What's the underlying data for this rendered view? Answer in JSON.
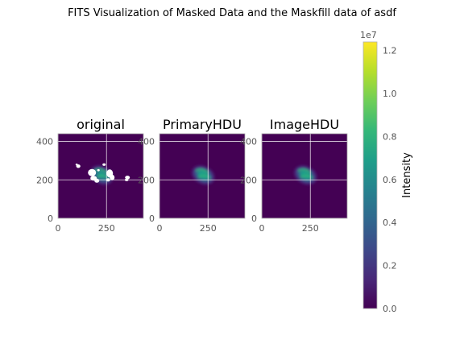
{
  "chart_data": [
    {
      "type": "heatmap",
      "title": "original",
      "xlim": [
        0,
        440
      ],
      "ylim": [
        0,
        440
      ],
      "xticks": [
        {
          "v": 0,
          "label": "0"
        },
        {
          "v": 250,
          "label": "250"
        }
      ],
      "yticks": [
        {
          "v": 0,
          "label": "0"
        },
        {
          "v": 200,
          "label": "200"
        },
        {
          "v": 400,
          "label": "400"
        }
      ],
      "grid": true,
      "masked": true,
      "source_center": [
        225,
        225
      ],
      "peak_intensity": 8000000,
      "background_intensity": 0
    },
    {
      "type": "heatmap",
      "title": "PrimaryHDU",
      "xlim": [
        0,
        440
      ],
      "ylim": [
        0,
        440
      ],
      "xticks": [
        {
          "v": 0,
          "label": "0"
        },
        {
          "v": 250,
          "label": "250"
        }
      ],
      "yticks": [
        {
          "v": 0,
          "label": "0"
        },
        {
          "v": 200,
          "label": "200"
        },
        {
          "v": 400,
          "label": "400"
        }
      ],
      "grid": true,
      "masked": false,
      "source_center": [
        225,
        225
      ],
      "peak_intensity": 7500000,
      "background_intensity": 0
    },
    {
      "type": "heatmap",
      "title": "ImageHDU",
      "xlim": [
        0,
        440
      ],
      "ylim": [
        0,
        440
      ],
      "xticks": [
        {
          "v": 0,
          "label": "0"
        },
        {
          "v": 250,
          "label": "250"
        }
      ],
      "yticks": [
        {
          "v": 0,
          "label": "0"
        },
        {
          "v": 200,
          "label": "200"
        },
        {
          "v": 400,
          "label": "400"
        }
      ],
      "grid": true,
      "masked": false,
      "source_center": [
        225,
        225
      ],
      "peak_intensity": 7500000,
      "background_intensity": 0
    }
  ],
  "figure": {
    "title": "FITS Visualization of Masked Data and the Maskfill data of asdf"
  },
  "colorbar": {
    "label": "Intensity",
    "offset_text": "1e7",
    "range": [
      0,
      12400000
    ],
    "ticks": [
      {
        "v": 0,
        "label": "0.0"
      },
      {
        "v": 2000000,
        "label": "0.2"
      },
      {
        "v": 4000000,
        "label": "0.4"
      },
      {
        "v": 6000000,
        "label": "0.6"
      },
      {
        "v": 8000000,
        "label": "0.8"
      },
      {
        "v": 10000000,
        "label": "1.0"
      },
      {
        "v": 12000000,
        "label": "1.2"
      }
    ],
    "colormap": "viridis"
  },
  "colors": {
    "viridis": [
      "#440154",
      "#482878",
      "#3e4989",
      "#31688e",
      "#26828e",
      "#1f9e89",
      "#35b779",
      "#6ece58",
      "#b5de2b",
      "#fde725"
    ],
    "grid": "#ffffff",
    "axes_edge": "#b0b0b0",
    "tick_label": "#555555",
    "title": "#000000"
  }
}
